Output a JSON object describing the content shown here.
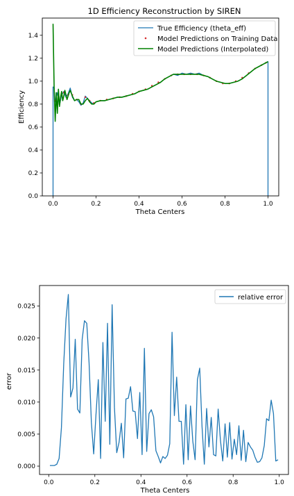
{
  "chart_data": [
    {
      "type": "line",
      "title": "1D Efficiency Reconstruction by SIREN",
      "xlabel": "Theta Centers",
      "ylabel": "Efficiency",
      "xlim": [
        -0.05,
        1.05
      ],
      "ylim": [
        0.0,
        1.55
      ],
      "xticks": [
        0.0,
        0.2,
        0.4,
        0.6,
        0.8,
        1.0
      ],
      "xtick_labels": [
        "0.0",
        "0.2",
        "0.4",
        "0.6",
        "0.8",
        "1.0"
      ],
      "yticks": [
        0.0,
        0.2,
        0.4,
        0.6,
        0.8,
        1.0,
        1.2,
        1.4
      ],
      "ytick_labels": [
        "0.0",
        "0.2",
        "0.4",
        "0.6",
        "0.8",
        "1.0",
        "1.2",
        "1.4"
      ],
      "grid": false,
      "legend_position": "top-right",
      "series": [
        {
          "name": "True Efficiency (theta_eff)",
          "style": "line",
          "color": "#1f77b4",
          "x": [
            0.0,
            0.0,
            0.005,
            0.01,
            0.02,
            0.03,
            0.04,
            0.05,
            0.06,
            0.07,
            0.08,
            0.09,
            0.1,
            0.11,
            0.12,
            0.13,
            0.14,
            0.15,
            0.16,
            0.17,
            0.18,
            0.19,
            0.2,
            0.22,
            0.24,
            0.26,
            0.28,
            0.3,
            0.32,
            0.34,
            0.36,
            0.38,
            0.4,
            0.42,
            0.44,
            0.46,
            0.48,
            0.5,
            0.52,
            0.54,
            0.56,
            0.58,
            0.6,
            0.62,
            0.64,
            0.66,
            0.68,
            0.7,
            0.72,
            0.74,
            0.76,
            0.78,
            0.8,
            0.82,
            0.84,
            0.86,
            0.88,
            0.9,
            0.92,
            0.94,
            0.96,
            0.98,
            1.0,
            1.0
          ],
          "y": [
            0.0,
            0.95,
            0.94,
            0.82,
            0.9,
            0.79,
            0.88,
            0.91,
            0.86,
            0.89,
            0.94,
            0.86,
            0.83,
            0.84,
            0.82,
            0.79,
            0.81,
            0.87,
            0.85,
            0.83,
            0.81,
            0.8,
            0.82,
            0.83,
            0.83,
            0.84,
            0.85,
            0.86,
            0.86,
            0.87,
            0.88,
            0.89,
            0.91,
            0.92,
            0.93,
            0.95,
            0.97,
            0.99,
            1.02,
            1.04,
            1.06,
            1.05,
            1.07,
            1.06,
            1.07,
            1.06,
            1.07,
            1.05,
            1.04,
            1.02,
            1.0,
            0.99,
            0.98,
            0.98,
            0.99,
            1.0,
            1.02,
            1.05,
            1.08,
            1.11,
            1.13,
            1.15,
            1.17,
            0.0
          ]
        },
        {
          "name": "Model Predictions on Training Data",
          "style": "scatter",
          "color": "#d62728",
          "x": [
            0.01,
            0.03,
            0.05,
            0.07,
            0.09,
            0.11,
            0.13,
            0.15,
            0.17,
            0.19,
            0.22,
            0.25,
            0.28,
            0.31,
            0.34,
            0.37,
            0.4,
            0.43,
            0.46,
            0.49,
            0.52,
            0.55,
            0.58,
            0.61,
            0.64,
            0.67,
            0.7,
            0.73,
            0.76,
            0.79,
            0.82,
            0.85,
            0.88,
            0.91,
            0.94,
            0.97,
            0.99
          ],
          "y": [
            0.83,
            0.8,
            0.9,
            0.88,
            0.88,
            0.84,
            0.8,
            0.86,
            0.83,
            0.81,
            0.83,
            0.84,
            0.85,
            0.86,
            0.87,
            0.89,
            0.91,
            0.93,
            0.96,
            0.99,
            1.02,
            1.05,
            1.06,
            1.06,
            1.06,
            1.06,
            1.05,
            1.03,
            1.0,
            0.98,
            0.98,
            1.0,
            1.03,
            1.07,
            1.11,
            1.14,
            1.16
          ]
        },
        {
          "name": "Model Predictions (Interpolated)",
          "style": "line",
          "color": "#008000",
          "x": [
            0.0,
            0.005,
            0.01,
            0.015,
            0.02,
            0.025,
            0.03,
            0.035,
            0.04,
            0.045,
            0.05,
            0.055,
            0.06,
            0.065,
            0.07,
            0.075,
            0.08,
            0.09,
            0.1,
            0.11,
            0.12,
            0.13,
            0.14,
            0.15,
            0.16,
            0.17,
            0.18,
            0.19,
            0.2,
            0.22,
            0.24,
            0.26,
            0.28,
            0.3,
            0.32,
            0.34,
            0.36,
            0.38,
            0.4,
            0.42,
            0.44,
            0.46,
            0.48,
            0.5,
            0.52,
            0.54,
            0.56,
            0.58,
            0.6,
            0.62,
            0.64,
            0.66,
            0.68,
            0.7,
            0.72,
            0.74,
            0.76,
            0.78,
            0.8,
            0.82,
            0.84,
            0.86,
            0.88,
            0.9,
            0.92,
            0.94,
            0.96,
            0.98,
            1.0
          ],
          "y": [
            1.5,
            0.95,
            0.65,
            0.9,
            0.72,
            0.93,
            0.78,
            0.86,
            0.91,
            0.83,
            0.87,
            0.92,
            0.88,
            0.84,
            0.87,
            0.9,
            0.92,
            0.87,
            0.83,
            0.84,
            0.84,
            0.8,
            0.8,
            0.83,
            0.85,
            0.82,
            0.8,
            0.8,
            0.82,
            0.83,
            0.83,
            0.84,
            0.85,
            0.86,
            0.86,
            0.87,
            0.88,
            0.89,
            0.91,
            0.92,
            0.93,
            0.95,
            0.97,
            0.99,
            1.02,
            1.04,
            1.06,
            1.06,
            1.06,
            1.06,
            1.06,
            1.06,
            1.06,
            1.05,
            1.04,
            1.02,
            1.0,
            0.99,
            0.98,
            0.98,
            0.99,
            1.0,
            1.02,
            1.05,
            1.08,
            1.11,
            1.13,
            1.15,
            1.17
          ]
        }
      ]
    },
    {
      "type": "line",
      "title": "",
      "xlabel": "Theta Centers",
      "ylabel": "error",
      "xlim": [
        -0.04,
        1.04
      ],
      "ylim": [
        -0.0013,
        0.0282
      ],
      "xticks": [
        0.0,
        0.2,
        0.4,
        0.6,
        0.8,
        1.0
      ],
      "xtick_labels": [
        "0.0",
        "0.2",
        "0.4",
        "0.6",
        "0.8",
        "1.0"
      ],
      "yticks": [
        0.0,
        0.005,
        0.01,
        0.015,
        0.02,
        0.025
      ],
      "ytick_labels": [
        "0.000",
        "0.005",
        "0.010",
        "0.015",
        "0.020",
        "0.025"
      ],
      "grid": false,
      "legend_position": "top-right",
      "series": [
        {
          "name": "relative error",
          "color": "#1f77b4",
          "x": [
            0.005,
            0.015,
            0.025,
            0.035,
            0.045,
            0.055,
            0.065,
            0.075,
            0.085,
            0.095,
            0.105,
            0.115,
            0.125,
            0.135,
            0.145,
            0.155,
            0.165,
            0.175,
            0.185,
            0.195,
            0.205,
            0.215,
            0.225,
            0.235,
            0.245,
            0.255,
            0.265,
            0.275,
            0.285,
            0.295,
            0.305,
            0.315,
            0.325,
            0.335,
            0.345,
            0.355,
            0.365,
            0.375,
            0.385,
            0.395,
            0.405,
            0.415,
            0.425,
            0.435,
            0.445,
            0.455,
            0.465,
            0.475,
            0.485,
            0.495,
            0.505,
            0.515,
            0.525,
            0.535,
            0.545,
            0.555,
            0.565,
            0.575,
            0.585,
            0.595,
            0.605,
            0.615,
            0.625,
            0.635,
            0.645,
            0.655,
            0.665,
            0.675,
            0.685,
            0.695,
            0.705,
            0.715,
            0.725,
            0.735,
            0.745,
            0.755,
            0.765,
            0.775,
            0.785,
            0.795,
            0.805,
            0.815,
            0.825,
            0.835,
            0.845,
            0.855,
            0.865,
            0.875,
            0.885,
            0.895,
            0.905,
            0.915,
            0.925,
            0.935,
            0.945,
            0.955,
            0.965,
            0.975,
            0.985,
            0.995
          ],
          "y": [
            0.0001,
            0.0001,
            0.0001,
            0.0003,
            0.0012,
            0.006,
            0.016,
            0.023,
            0.0268,
            0.0108,
            0.0122,
            0.0198,
            0.0089,
            0.0083,
            0.0198,
            0.0227,
            0.0223,
            0.0161,
            0.0068,
            0.0019,
            0.0081,
            0.0135,
            0.0012,
            0.0193,
            0.007,
            0.0223,
            0.0034,
            0.0252,
            0.0092,
            0.0021,
            0.0037,
            0.0067,
            0.0013,
            0.0105,
            0.0106,
            0.0124,
            0.0086,
            0.0085,
            0.0043,
            0.0115,
            0.0018,
            0.0184,
            0.0023,
            0.0082,
            0.0088,
            0.0077,
            0.0024,
            0.0015,
            0.0005,
            0.0015,
            0.0012,
            0.0017,
            0.0035,
            0.0209,
            0.0079,
            0.0139,
            0.007,
            0.007,
            0.0003,
            0.0096,
            0.001,
            0.0094,
            0.0039,
            0.001,
            0.0135,
            0.0153,
            0.0062,
            0.0003,
            0.009,
            0.003,
            0.0076,
            0.0018,
            0.0016,
            0.0089,
            0.004,
            0.0008,
            0.0066,
            0.0014,
            0.0068,
            0.0011,
            0.0042,
            0.0018,
            0.0063,
            0.0009,
            0.0056,
            0.0007,
            0.0037,
            0.003,
            0.0025,
            0.0014,
            0.0006,
            0.0007,
            0.0013,
            0.0032,
            0.0074,
            0.0071,
            0.0103,
            0.0082,
            0.0008,
            0.001
          ]
        }
      ]
    }
  ]
}
